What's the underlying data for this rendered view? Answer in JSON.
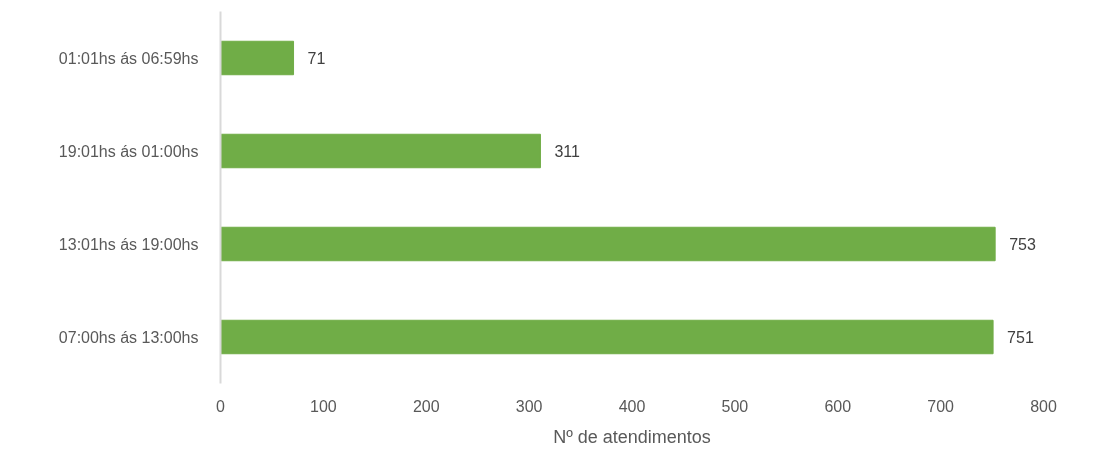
{
  "chart_data": {
    "type": "bar",
    "orientation": "horizontal",
    "xlabel": "Nº de atendimentos",
    "categories": [
      "01:01hs ás 06:59hs",
      "19:01hs ás 01:00hs",
      "13:01hs ás 19:00hs",
      "07:00hs ás 13:00hs"
    ],
    "values": [
      71,
      311,
      753,
      751
    ],
    "color": "#70ad47",
    "xlim": [
      0,
      800
    ],
    "xticks": [
      0,
      100,
      200,
      300,
      400,
      500,
      600,
      700,
      800
    ],
    "data_labels": true
  }
}
